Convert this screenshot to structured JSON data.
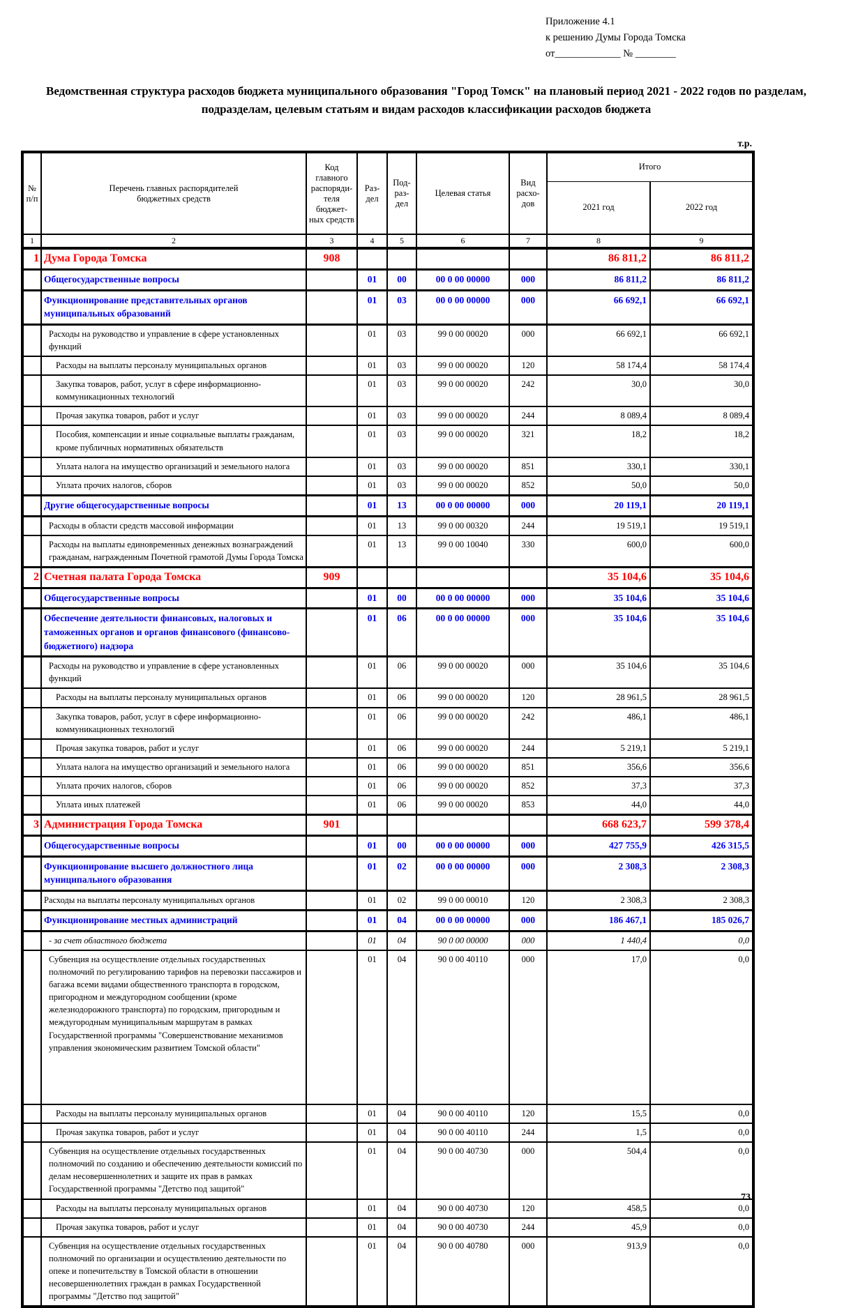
{
  "page": {
    "appendix_note": "Приложение 4.1\nк решению Думы Города Томска\nот_____________  № ________",
    "title": "Ведомственная структура расходов бюджета муниципального образования \"Город Томск\"  на плановый период 2021 - 2022 годов по разделам, подразделам, целевым статьям и видам расходов классификации расходов бюджета",
    "unit_label": "т.р.",
    "page_number": "73"
  },
  "colors": {
    "section_row": "#ff0000",
    "subsection_row": "#0000ee",
    "text": "#000000"
  },
  "table": {
    "headers": {
      "num": "№\nп/п",
      "name": "Перечень главных распорядителей\nбюджетных средств",
      "code": "Код\nглавного\nраспоряди-\nтеля бюджет-\nных средств",
      "section": "Раз-\nдел",
      "subsection": "Под-\nраз-\nдел",
      "target": "Целевая статья",
      "expense_type": "Вид расхо-\nдов",
      "total": "Итого",
      "y2021": "2021 год",
      "y2022": "2022 год"
    },
    "column_numbers": [
      "1",
      "2",
      "3",
      "4",
      "5",
      "6",
      "7",
      "8",
      "9"
    ],
    "rows": [
      {
        "num": "1",
        "name": "Дума Города Томска",
        "code": "908",
        "sec": "",
        "sub": "",
        "target": "",
        "vid": "",
        "y2021": "86 811,2",
        "y2022": "86 811,2",
        "style": "red",
        "indent": 0
      },
      {
        "num": "",
        "name": "Общегосударственные вопросы",
        "code": "",
        "sec": "01",
        "sub": "00",
        "target": "00 0 00 00000",
        "vid": "000",
        "y2021": "86 811,2",
        "y2022": "86 811,2",
        "style": "blue",
        "indent": 0
      },
      {
        "num": "",
        "name": "Функционирование представительных органов муниципальных образований",
        "code": "",
        "sec": "01",
        "sub": "03",
        "target": "00 0 00 00000",
        "vid": "000",
        "y2021": "66 692,1",
        "y2022": "66 692,1",
        "style": "blue",
        "indent": 0
      },
      {
        "num": "",
        "name": "Расходы на руководство и управление в сфере установленных функций",
        "code": "",
        "sec": "01",
        "sub": "03",
        "target": "99 0 00 00020",
        "vid": "000",
        "y2021": "66 692,1",
        "y2022": "66 692,1",
        "style": "black",
        "indent": 1
      },
      {
        "num": "",
        "name": "Расходы на выплаты персоналу муниципальных органов",
        "code": "",
        "sec": "01",
        "sub": "03",
        "target": "99 0 00 00020",
        "vid": "120",
        "y2021": "58 174,4",
        "y2022": "58 174,4",
        "style": "black",
        "indent": 2
      },
      {
        "num": "",
        "name": "Закупка товаров, работ, услуг в сфере информационно-коммуникационных технологий",
        "code": "",
        "sec": "01",
        "sub": "03",
        "target": "99 0 00 00020",
        "vid": "242",
        "y2021": "30,0",
        "y2022": "30,0",
        "style": "black",
        "indent": 2
      },
      {
        "num": "",
        "name": "Прочая закупка товаров, работ и услуг",
        "code": "",
        "sec": "01",
        "sub": "03",
        "target": "99 0 00 00020",
        "vid": "244",
        "y2021": "8 089,4",
        "y2022": "8 089,4",
        "style": "black",
        "indent": 2
      },
      {
        "num": "",
        "name": "Пособия, компенсации и иные социальные выплаты гражданам, кроме публичных нормативных обязательств",
        "code": "",
        "sec": "01",
        "sub": "03",
        "target": "99 0 00 00020",
        "vid": "321",
        "y2021": "18,2",
        "y2022": "18,2",
        "style": "black",
        "indent": 2
      },
      {
        "num": "",
        "name": "Уплата налога на имущество организаций и земельного налога",
        "code": "",
        "sec": "01",
        "sub": "03",
        "target": "99 0 00 00020",
        "vid": "851",
        "y2021": "330,1",
        "y2022": "330,1",
        "style": "black",
        "indent": 2
      },
      {
        "num": "",
        "name": "Уплата прочих налогов, сборов",
        "code": "",
        "sec": "01",
        "sub": "03",
        "target": "99 0 00 00020",
        "vid": "852",
        "y2021": "50,0",
        "y2022": "50,0",
        "style": "black",
        "indent": 2
      },
      {
        "num": "",
        "name": "Другие общегосударственные вопросы",
        "code": "",
        "sec": "01",
        "sub": "13",
        "target": "00 0 00 00000",
        "vid": "000",
        "y2021": "20 119,1",
        "y2022": "20 119,1",
        "style": "blue",
        "indent": 0
      },
      {
        "num": "",
        "name": "Расходы в области средств массовой информации",
        "code": "",
        "sec": "01",
        "sub": "13",
        "target": "99 0 00 00320",
        "vid": "244",
        "y2021": "19 519,1",
        "y2022": "19 519,1",
        "style": "black",
        "indent": 1
      },
      {
        "num": "",
        "name": "Расходы на выплаты единовременных денежных вознаграждений гражданам, награжденным Почетной грамотой Думы Города Томска",
        "code": "",
        "sec": "01",
        "sub": "13",
        "target": "99 0 00 10040",
        "vid": "330",
        "y2021": "600,0",
        "y2022": "600,0",
        "style": "black",
        "indent": 1
      },
      {
        "num": "2",
        "name": "Счетная палата Города Томска",
        "code": "909",
        "sec": "",
        "sub": "",
        "target": "",
        "vid": "",
        "y2021": "35 104,6",
        "y2022": "35 104,6",
        "style": "red",
        "indent": 0
      },
      {
        "num": "",
        "name": "Общегосударственные вопросы",
        "code": "",
        "sec": "01",
        "sub": "00",
        "target": "00 0 00 00000",
        "vid": "000",
        "y2021": "35 104,6",
        "y2022": "35 104,6",
        "style": "blue",
        "indent": 0
      },
      {
        "num": "",
        "name": "Обеспечение деятельности финансовых, налоговых и таможенных органов и органов финансового (финансово-бюджетного) надзора",
        "code": "",
        "sec": "01",
        "sub": "06",
        "target": "00 0 00 00000",
        "vid": "000",
        "y2021": "35 104,6",
        "y2022": "35 104,6",
        "style": "blue",
        "indent": 0
      },
      {
        "num": "",
        "name": "Расходы на руководство и управление в сфере установленных функций",
        "code": "",
        "sec": "01",
        "sub": "06",
        "target": "99 0 00 00020",
        "vid": "000",
        "y2021": "35 104,6",
        "y2022": "35 104,6",
        "style": "black",
        "indent": 1
      },
      {
        "num": "",
        "name": "Расходы на выплаты персоналу муниципальных органов",
        "code": "",
        "sec": "01",
        "sub": "06",
        "target": "99 0 00 00020",
        "vid": "120",
        "y2021": "28 961,5",
        "y2022": "28 961,5",
        "style": "black",
        "indent": 2
      },
      {
        "num": "",
        "name": "Закупка товаров, работ, услуг в сфере информационно-коммуникационных технологий",
        "code": "",
        "sec": "01",
        "sub": "06",
        "target": "99 0 00 00020",
        "vid": "242",
        "y2021": "486,1",
        "y2022": "486,1",
        "style": "black",
        "indent": 2
      },
      {
        "num": "",
        "name": "Прочая закупка товаров, работ и услуг",
        "code": "",
        "sec": "01",
        "sub": "06",
        "target": "99 0 00 00020",
        "vid": "244",
        "y2021": "5 219,1",
        "y2022": "5 219,1",
        "style": "black",
        "indent": 2
      },
      {
        "num": "",
        "name": "Уплата налога на имущество организаций и земельного налога",
        "code": "",
        "sec": "01",
        "sub": "06",
        "target": "99 0 00 00020",
        "vid": "851",
        "y2021": "356,6",
        "y2022": "356,6",
        "style": "black",
        "indent": 2
      },
      {
        "num": "",
        "name": "Уплата прочих налогов, сборов",
        "code": "",
        "sec": "01",
        "sub": "06",
        "target": "99 0 00 00020",
        "vid": "852",
        "y2021": "37,3",
        "y2022": "37,3",
        "style": "black",
        "indent": 2
      },
      {
        "num": "",
        "name": "Уплата иных платежей",
        "code": "",
        "sec": "01",
        "sub": "06",
        "target": "99 0 00 00020",
        "vid": "853",
        "y2021": "44,0",
        "y2022": "44,0",
        "style": "black",
        "indent": 2
      },
      {
        "num": "3",
        "name": "Администрация Города Томска",
        "code": "901",
        "sec": "",
        "sub": "",
        "target": "",
        "vid": "",
        "y2021": "668 623,7",
        "y2022": "599 378,4",
        "style": "red",
        "indent": 0
      },
      {
        "num": "",
        "name": "Общегосударственные вопросы",
        "code": "",
        "sec": "01",
        "sub": "00",
        "target": "00 0 00 00000",
        "vid": "000",
        "y2021": "427 755,9",
        "y2022": "426 315,5",
        "style": "blue",
        "indent": 0
      },
      {
        "num": "",
        "name": "Функционирование высшего должностного лица муниципального образования",
        "code": "",
        "sec": "01",
        "sub": "02",
        "target": "00 0 00 00000",
        "vid": "000",
        "y2021": "2 308,3",
        "y2022": "2 308,3",
        "style": "blue",
        "indent": 0
      },
      {
        "num": "",
        "name": "Расходы на выплаты персоналу муниципальных органов",
        "code": "",
        "sec": "01",
        "sub": "02",
        "target": "99 0 00 00010",
        "vid": "120",
        "y2021": "2 308,3",
        "y2022": "2 308,3",
        "style": "black",
        "indent": 0
      },
      {
        "num": "",
        "name": "Функционирование местных администраций",
        "code": "",
        "sec": "01",
        "sub": "04",
        "target": "00 0 00 00000",
        "vid": "000",
        "y2021": "186 467,1",
        "y2022": "185 026,7",
        "style": "blue",
        "indent": 0
      },
      {
        "num": "",
        "name": "- за счет областного бюджета",
        "code": "",
        "sec": "01",
        "sub": "04",
        "target": "90 0 00 00000",
        "vid": "000",
        "y2021": "1 440,4",
        "y2022": "0,0",
        "style": "italic",
        "indent": 1
      },
      {
        "num": "",
        "name": "Субвенция на осуществление отдельных государственных полномочий по регулированию тарифов на перевозки пассажиров и багажа всеми видами общественного транспорта в городском, пригородном и междугородном сообщении (кроме железнодорожного транспорта) по городским, пригородным и междугородным муниципальным маршрутам в рамках Государственной программы \"Совершенствование механизмов управления экономическим развитием Томской области\"",
        "code": "",
        "sec": "01",
        "sub": "04",
        "target": "90 0 00 40110",
        "vid": "000",
        "y2021": "17,0",
        "y2022": "0,0",
        "style": "black",
        "indent": 1,
        "tall": true
      },
      {
        "num": "",
        "name": "Расходы на выплаты персоналу муниципальных органов",
        "code": "",
        "sec": "01",
        "sub": "04",
        "target": "90 0 00 40110",
        "vid": "120",
        "y2021": "15,5",
        "y2022": "0,0",
        "style": "black",
        "indent": 2
      },
      {
        "num": "",
        "name": "Прочая закупка товаров, работ и услуг",
        "code": "",
        "sec": "01",
        "sub": "04",
        "target": "90 0 00 40110",
        "vid": "244",
        "y2021": "1,5",
        "y2022": "0,0",
        "style": "black",
        "indent": 2
      },
      {
        "num": "",
        "name": "Субвенция на осуществление отдельных государственных полномочий по созданию и обеспечению деятельности комиссий по делам несовершеннолетних и защите их прав в рамках Государственной программы \"Детство под защитой\"",
        "code": "",
        "sec": "01",
        "sub": "04",
        "target": "90 0 00 40730",
        "vid": "000",
        "y2021": "504,4",
        "y2022": "0,0",
        "style": "black",
        "indent": 1
      },
      {
        "num": "",
        "name": "Расходы на выплаты персоналу муниципальных органов",
        "code": "",
        "sec": "01",
        "sub": "04",
        "target": "90 0 00 40730",
        "vid": "120",
        "y2021": "458,5",
        "y2022": "0,0",
        "style": "black",
        "indent": 2
      },
      {
        "num": "",
        "name": "Прочая закупка товаров, работ и услуг",
        "code": "",
        "sec": "01",
        "sub": "04",
        "target": "90 0 00 40730",
        "vid": "244",
        "y2021": "45,9",
        "y2022": "0,0",
        "style": "black",
        "indent": 2
      },
      {
        "num": "",
        "name": "Субвенция на осуществление отдельных государственных полномочий по организации и осуществлению деятельности по опеке и попечительству в Томской области в отношении несовершеннолетних граждан в рамках Государственной программы \"Детство под защитой\"",
        "code": "",
        "sec": "01",
        "sub": "04",
        "target": "90 0 00 40780",
        "vid": "000",
        "y2021": "913,9",
        "y2022": "0,0",
        "style": "black",
        "indent": 1
      }
    ]
  }
}
